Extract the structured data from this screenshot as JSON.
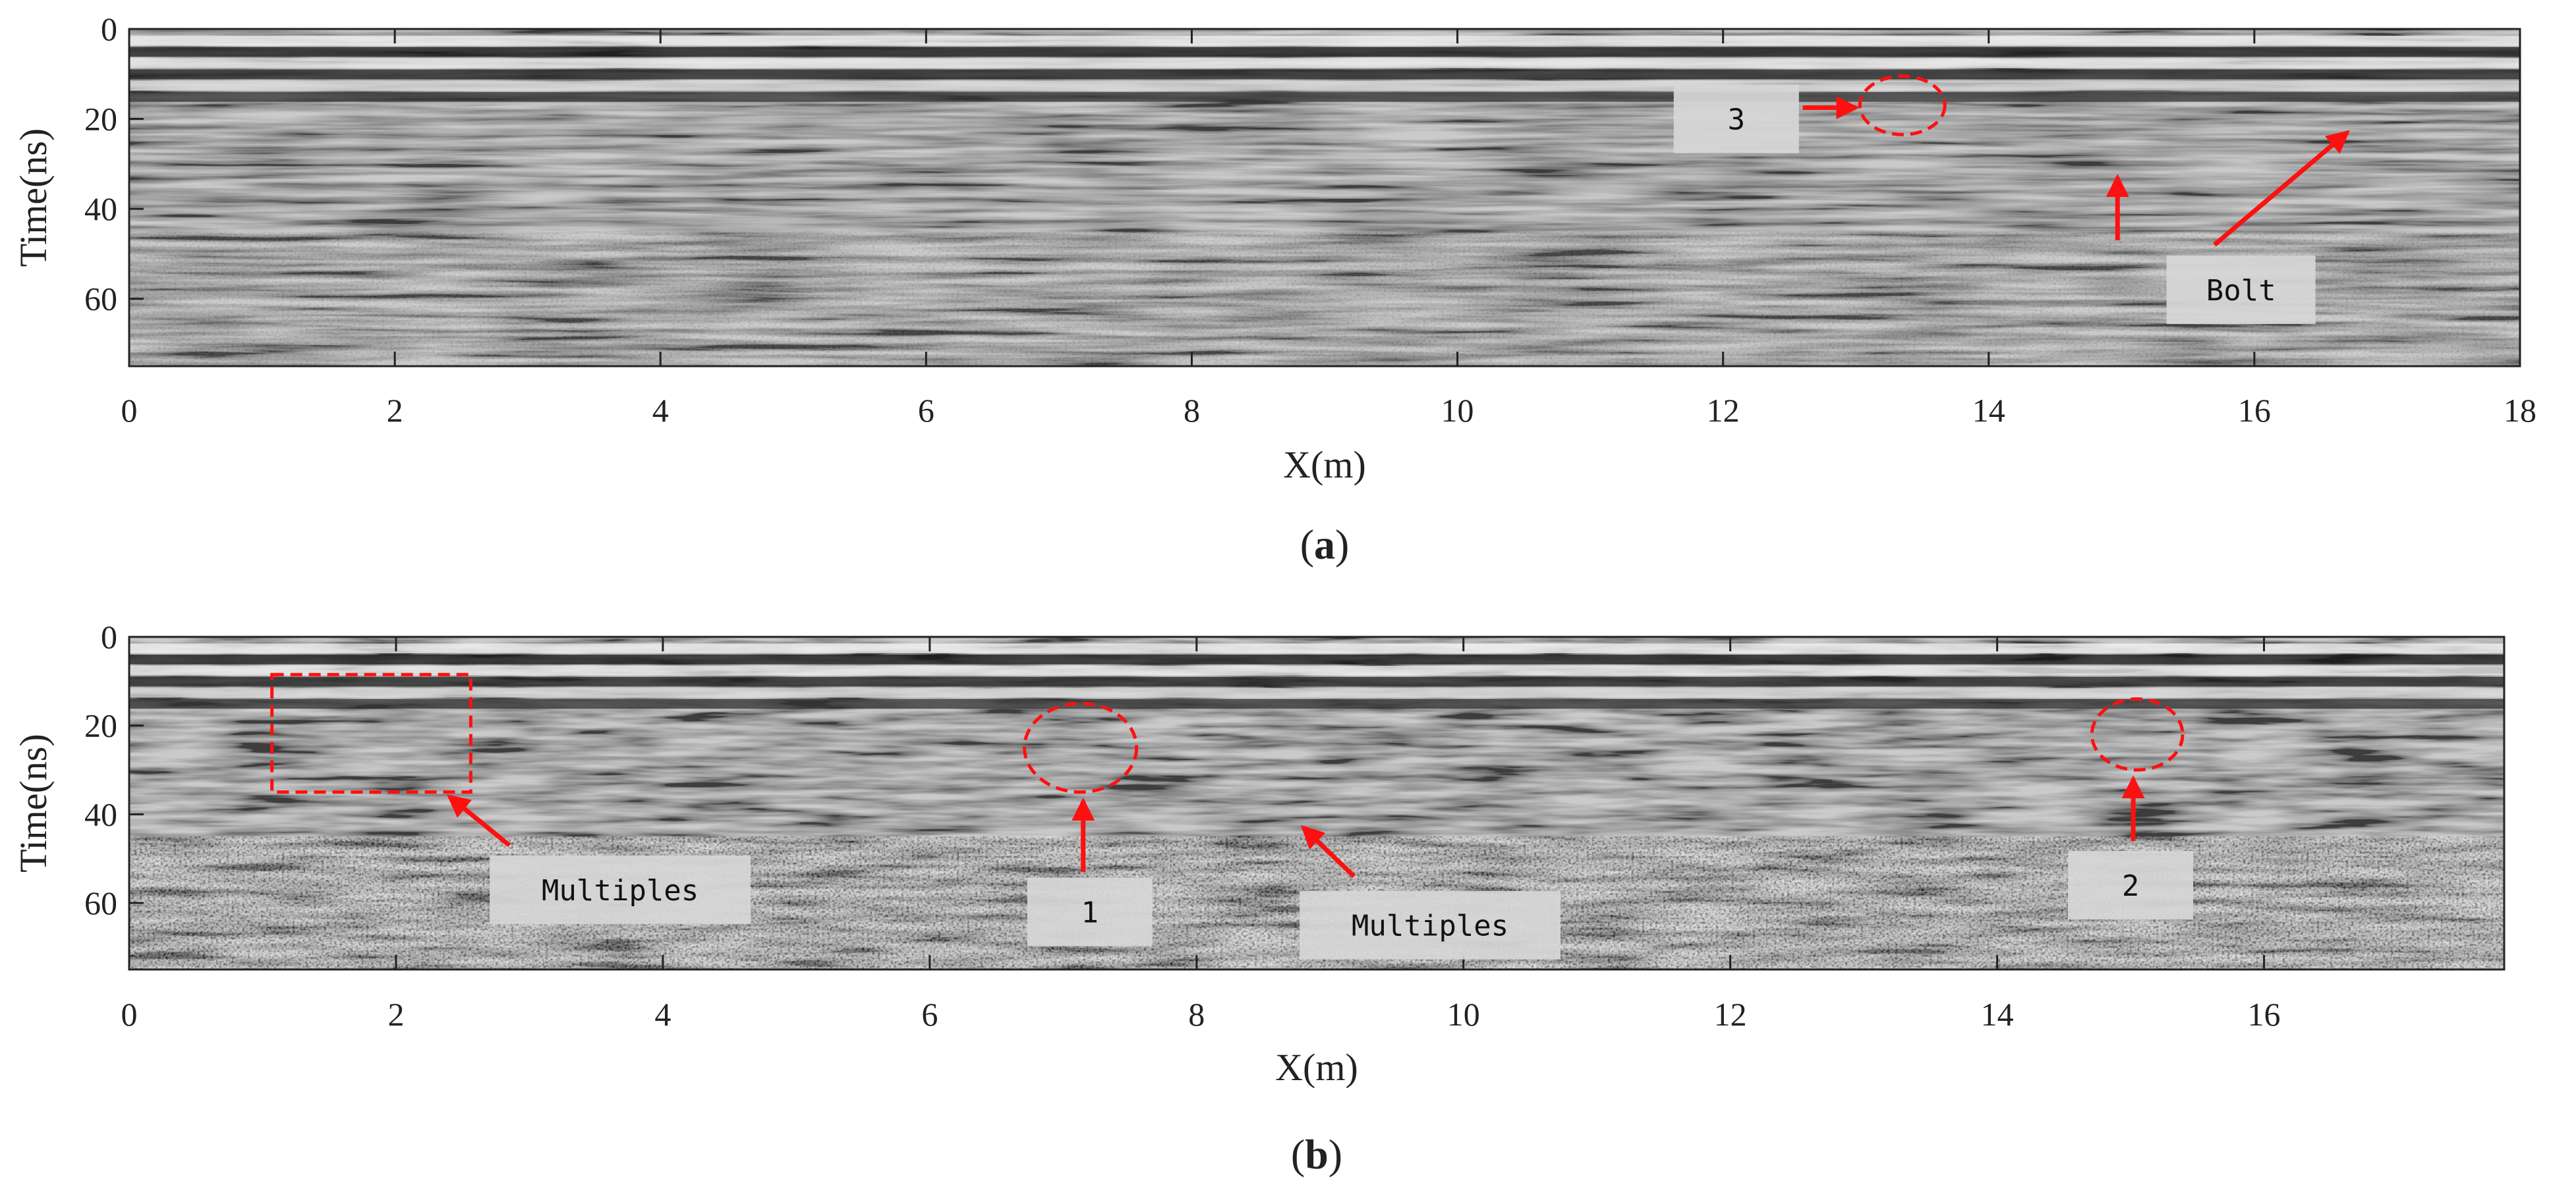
{
  "colors": {
    "annotation": "#ff1010",
    "label_box": "#d6d6d6",
    "axis": "#222222"
  },
  "chart_data": [
    {
      "type": "heatmap",
      "caption": "a",
      "xlabel": "X(m)",
      "ylabel": "Time(ns)",
      "xlim": [
        0,
        18
      ],
      "ylim": [
        75,
        0
      ],
      "xticks": [
        0,
        2,
        4,
        6,
        8,
        10,
        12,
        14,
        16,
        18
      ],
      "yticks": [
        0,
        20,
        40,
        60
      ],
      "colormap": "grayscale",
      "annotations": [
        {
          "type": "label",
          "text": "3",
          "x": 12.1,
          "y": 20
        },
        {
          "type": "circle",
          "x": 13.35,
          "y": 17,
          "rx": 0.32,
          "ry": 6.5
        },
        {
          "type": "arrow",
          "x1": 12.6,
          "y1": 17.5,
          "x2": 13.0,
          "y2": 17.5
        },
        {
          "type": "label",
          "text": "Bolt",
          "x": 15.9,
          "y": 58
        },
        {
          "type": "arrow",
          "x1": 14.97,
          "y1": 47,
          "x2": 14.97,
          "y2": 33
        },
        {
          "type": "arrow",
          "x1": 15.7,
          "y1": 48,
          "x2": 16.7,
          "y2": 23
        }
      ]
    },
    {
      "type": "heatmap",
      "caption": "b",
      "xlabel": "X(m)",
      "ylabel": "Time(ns)",
      "xlim": [
        0,
        17.8
      ],
      "ylim": [
        75,
        0
      ],
      "xticks": [
        0,
        2,
        4,
        6,
        8,
        10,
        12,
        14,
        16
      ],
      "yticks": [
        0,
        20,
        40,
        60
      ],
      "colormap": "grayscale",
      "annotations": [
        {
          "type": "rect",
          "x1": 1.07,
          "x2": 2.56,
          "y1": 8.5,
          "y2": 35
        },
        {
          "type": "label",
          "text": "Multiples",
          "x": 3.68,
          "y": 57
        },
        {
          "type": "arrow",
          "x1": 2.85,
          "y1": 47,
          "x2": 2.4,
          "y2": 36
        },
        {
          "type": "circle",
          "x": 7.13,
          "y": 25,
          "rx": 0.42,
          "ry": 10
        },
        {
          "type": "label",
          "text": "1",
          "x": 7.2,
          "y": 62
        },
        {
          "type": "arrow",
          "x1": 7.15,
          "y1": 53,
          "x2": 7.15,
          "y2": 37
        },
        {
          "type": "label",
          "text": "Multiples",
          "x": 9.75,
          "y": 65
        },
        {
          "type": "arrow",
          "x1": 9.18,
          "y1": 54,
          "x2": 8.8,
          "y2": 43
        },
        {
          "type": "circle",
          "x": 15.05,
          "y": 22,
          "rx": 0.34,
          "ry": 8
        },
        {
          "type": "label",
          "text": "2",
          "x": 15.0,
          "y": 56
        },
        {
          "type": "arrow",
          "x1": 15.02,
          "y1": 46,
          "x2": 15.02,
          "y2": 32
        }
      ]
    }
  ]
}
